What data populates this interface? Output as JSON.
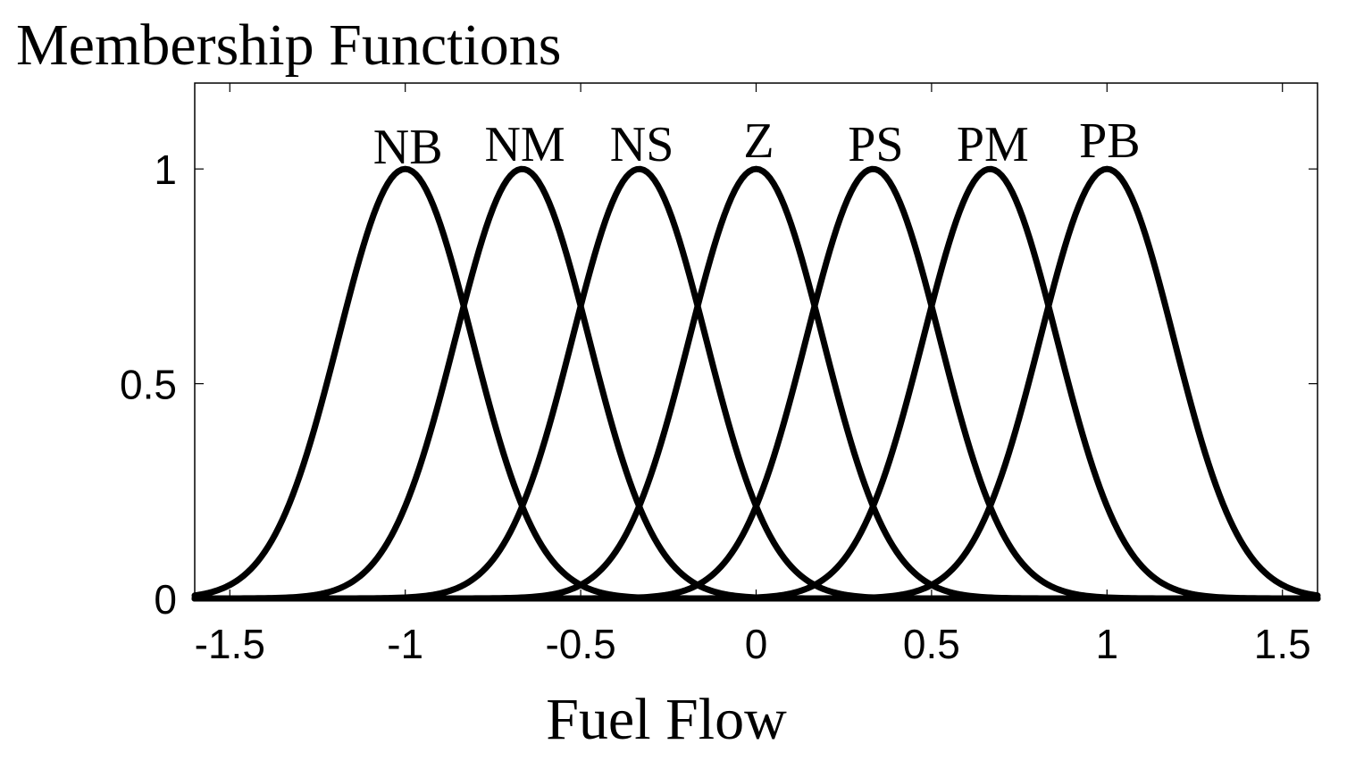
{
  "chart_data": {
    "type": "line",
    "title": "Membership Functions",
    "xlabel": "Fuel Flow",
    "ylabel": "",
    "xlim": [
      -1.6,
      1.6
    ],
    "ylim": [
      0,
      1.2
    ],
    "x_ticks": [
      -1.5,
      -1,
      -0.5,
      0,
      0.5,
      1,
      1.5
    ],
    "x_tick_labels": [
      "-1.5",
      "-1",
      "-0.5",
      "0",
      "0.5",
      "1",
      "1.5"
    ],
    "y_ticks": [
      0,
      0.5,
      1
    ],
    "y_tick_labels": [
      "0",
      "0.5",
      "1"
    ],
    "grid": false,
    "membership_function": "gaussian",
    "sigma": 0.19,
    "series": [
      {
        "name": "NB",
        "center": -1.0
      },
      {
        "name": "NM",
        "center": -0.6667
      },
      {
        "name": "NS",
        "center": -0.3333
      },
      {
        "name": "Z",
        "center": 0.0
      },
      {
        "name": "PS",
        "center": 0.3333
      },
      {
        "name": "PM",
        "center": 0.6667
      },
      {
        "name": "PB",
        "center": 1.0
      }
    ],
    "colors": {
      "line": "#000000",
      "background": "#ffffff"
    }
  }
}
